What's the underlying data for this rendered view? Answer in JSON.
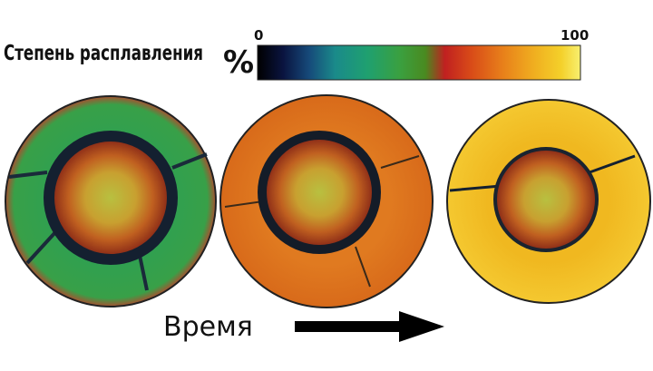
{
  "title": "Степень расплавления",
  "unit": "%",
  "colorbar": {
    "min": 0,
    "max": 100
  },
  "time_label": "Время"
}
